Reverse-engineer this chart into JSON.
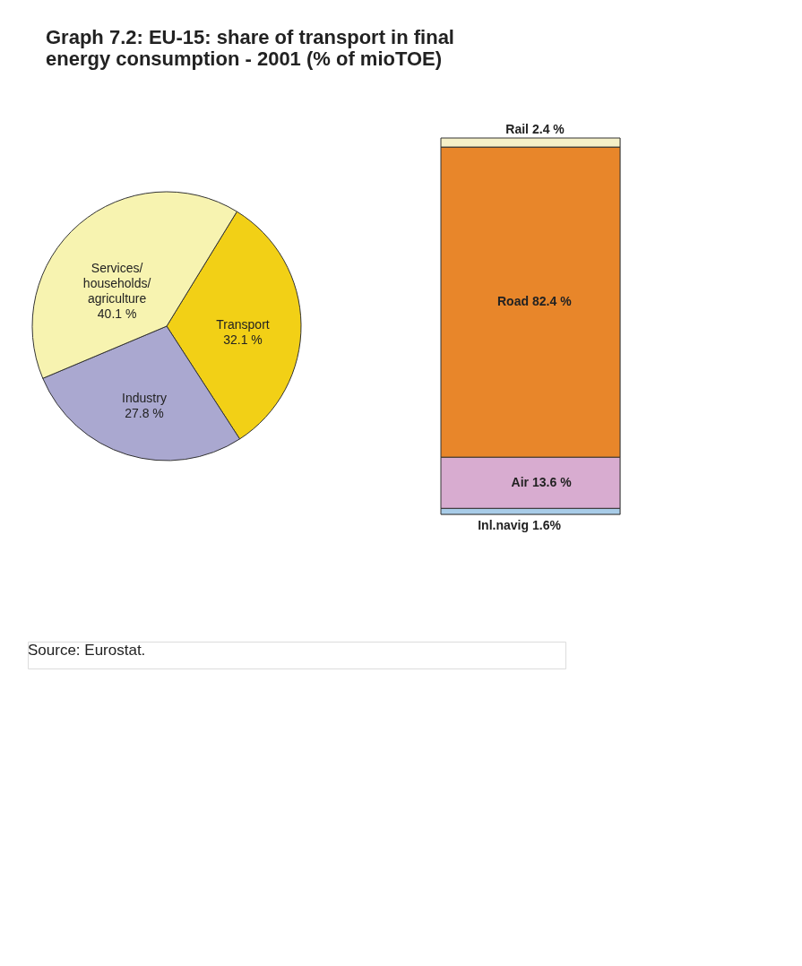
{
  "chart_data": [
    {
      "type": "pie",
      "title": "Graph 7.2:  EU-15: share of transport in final energy consumption - 2001 (% of mioTOE)",
      "categories": [
        "Transport",
        "Industry",
        "Services/households/agriculture"
      ],
      "values": [
        32.1,
        27.8,
        40.1
      ],
      "colors": [
        "#f2d016",
        "#aaa8d0",
        "#f7f3b0"
      ],
      "value_labels": [
        "32.1 %",
        "27.8 %",
        "40.1 %"
      ],
      "annotations": [
        "Source: Eurostat."
      ]
    },
    {
      "type": "bar",
      "stacked": true,
      "categories": [
        null
      ],
      "tick_labels": false,
      "series": [
        {
          "name": "Inl.navig",
          "color": "#a8cce8",
          "values": [
            1.6
          ],
          "value_labels": [
            "1.6%"
          ]
        },
        {
          "name": "Air",
          "color": "#d8acd0",
          "values": [
            13.6
          ],
          "value_labels": [
            "13.6 %"
          ]
        },
        {
          "name": "Road",
          "color": "#e8862a",
          "values": [
            82.4
          ],
          "value_labels": [
            "82.4 %"
          ]
        },
        {
          "name": "Rail",
          "color": "#f5f0c8",
          "values": [
            2.4
          ],
          "value_labels": [
            "2.4 %"
          ]
        }
      ]
    }
  ]
}
